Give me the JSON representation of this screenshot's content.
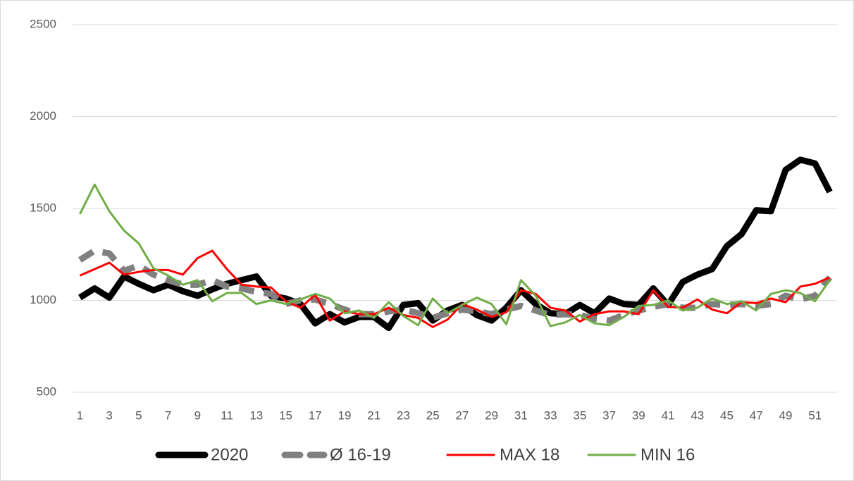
{
  "chart_data": {
    "type": "line",
    "categories": [
      1,
      null,
      3,
      null,
      5,
      null,
      7,
      null,
      9,
      null,
      11,
      null,
      13,
      null,
      15,
      null,
      17,
      null,
      19,
      null,
      21,
      null,
      23,
      null,
      25,
      null,
      27,
      null,
      29,
      null,
      31,
      null,
      33,
      null,
      35,
      null,
      37,
      null,
      39,
      null,
      41,
      null,
      43,
      null,
      45,
      null,
      47,
      null,
      49,
      null,
      51,
      null
    ],
    "series": [
      {
        "name": "2020",
        "color": "#000000",
        "width": 9,
        "dashed": false,
        "values": [
          1015,
          1065,
          1015,
          1130,
          1090,
          1055,
          1085,
          1050,
          1025,
          1060,
          1090,
          1110,
          1130,
          1025,
          1010,
          980,
          875,
          925,
          880,
          910,
          910,
          850,
          975,
          985,
          890,
          945,
          975,
          920,
          890,
          960,
          1055,
          980,
          930,
          925,
          975,
          930,
          1010,
          980,
          975,
          1065,
          975,
          1100,
          1140,
          1170,
          1295,
          1360,
          1490,
          1485,
          1710,
          1765,
          1745,
          1590
        ]
      },
      {
        "name": "Ø 16-19",
        "color": "#808080",
        "width": 9,
        "dashed": true,
        "values": [
          1220,
          1270,
          1255,
          1160,
          1190,
          1140,
          1110,
          1085,
          1085,
          1110,
          1075,
          1065,
          1045,
          1035,
          980,
          1000,
          1005,
          980,
          950,
          925,
          925,
          940,
          950,
          930,
          905,
          930,
          950,
          940,
          925,
          950,
          970,
          945,
          920,
          925,
          920,
          900,
          890,
          920,
          945,
          965,
          980,
          960,
          960,
          980,
          975,
          980,
          970,
          980,
          1025,
          1005,
          1025,
          1125
        ]
      },
      {
        "name": "MAX 18",
        "color": "#ff0000",
        "width": 3,
        "dashed": false,
        "values": [
          1135,
          1170,
          1205,
          1140,
          1155,
          1165,
          1165,
          1140,
          1230,
          1270,
          1170,
          1085,
          1075,
          1070,
          995,
          960,
          1030,
          890,
          940,
          925,
          925,
          960,
          920,
          905,
          855,
          895,
          980,
          950,
          910,
          935,
          1055,
          1035,
          960,
          945,
          885,
          925,
          940,
          940,
          925,
          1055,
          965,
          960,
          1005,
          950,
          930,
          990,
          985,
          1010,
          990,
          1075,
          1090,
          1125
        ]
      },
      {
        "name": "MIN 16",
        "color": "#70ad47",
        "width": 3,
        "dashed": false,
        "values": [
          1470,
          1630,
          1485,
          1380,
          1310,
          1175,
          1135,
          1085,
          1110,
          995,
          1040,
          1040,
          980,
          1000,
          980,
          1005,
          1035,
          1010,
          930,
          945,
          905,
          990,
          915,
          865,
          1010,
          930,
          975,
          1015,
          980,
          870,
          1110,
          1025,
          860,
          880,
          920,
          875,
          865,
          910,
          970,
          975,
          1000,
          945,
          960,
          1010,
          980,
          995,
          945,
          1035,
          1055,
          1040,
          995,
          1110
        ]
      }
    ],
    "ylim": [
      500,
      2500
    ],
    "yticks": [
      500,
      1000,
      1500,
      2000,
      2500
    ],
    "grid": true,
    "legend": "bottom"
  }
}
